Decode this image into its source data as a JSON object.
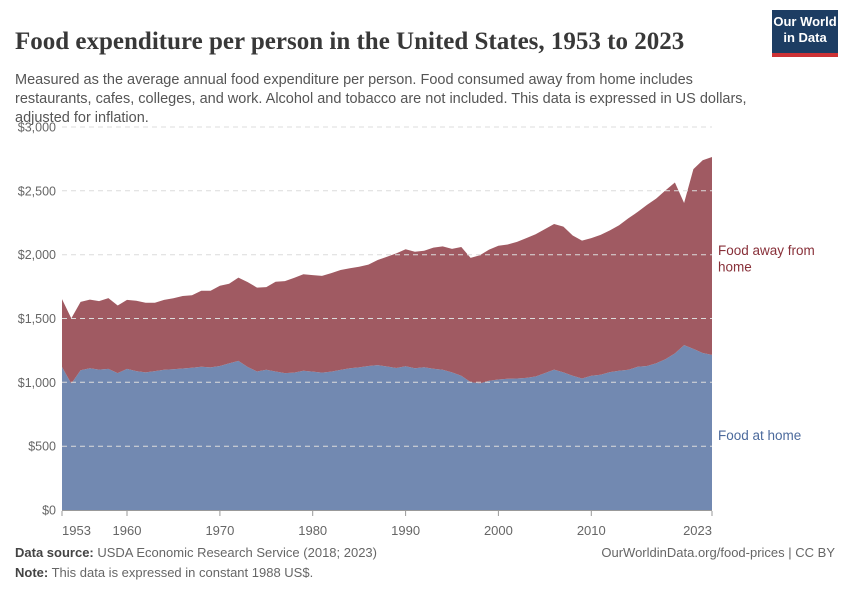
{
  "header": {
    "title": "Food expenditure per person in the United States, 1953 to 2023",
    "subtitle": "Measured as the average annual food expenditure per person. Food consumed away from home includes restaurants, cafes, colleges, and work. Alcohol and tobacco are not included. This data is expressed in US dollars, adjusted for inflation.",
    "logo": {
      "line1": "Our World",
      "line2": "in Data",
      "bg_color": "#1d3d63",
      "accent_color": "#cd3235",
      "text_color": "#ffffff"
    }
  },
  "footer": {
    "source_label": "Data source:",
    "source_text": " USDA Economic Research Service (2018; 2023)",
    "note_label": "Note:",
    "note_text": " This data is expressed in constant 1988 US$.",
    "credit": "OurWorldinData.org/food-prices | CC BY"
  },
  "chart_data": {
    "type": "area",
    "stacked": true,
    "title": "Food expenditure per person in the United States, 1953 to 2023",
    "xlabel": "",
    "ylabel": "",
    "ylim": [
      0,
      3000
    ],
    "grid": "horizontal-dashed",
    "legend_position": "right-of-plot",
    "y_tick_prefix": "$",
    "y_ticks": [
      0,
      500,
      1000,
      1500,
      2000,
      2500,
      3000
    ],
    "x_ticks": [
      1953,
      1960,
      1970,
      1980,
      1990,
      2000,
      2010,
      2023
    ],
    "x": [
      1953,
      1954,
      1955,
      1956,
      1957,
      1958,
      1959,
      1960,
      1961,
      1962,
      1963,
      1964,
      1965,
      1966,
      1967,
      1968,
      1969,
      1970,
      1971,
      1972,
      1973,
      1974,
      1975,
      1976,
      1977,
      1978,
      1979,
      1980,
      1981,
      1982,
      1983,
      1984,
      1985,
      1986,
      1987,
      1988,
      1989,
      1990,
      1991,
      1992,
      1993,
      1994,
      1995,
      1996,
      1997,
      1998,
      1999,
      2000,
      2001,
      2002,
      2003,
      2004,
      2005,
      2006,
      2007,
      2008,
      2009,
      2010,
      2011,
      2012,
      2013,
      2014,
      2015,
      2016,
      2017,
      2018,
      2019,
      2020,
      2021,
      2022,
      2023
    ],
    "series": [
      {
        "name": "Food at home",
        "color": "#4C6A9C",
        "fill": "#7289B1",
        "values": [
          1120,
          990,
          1095,
          1110,
          1100,
          1105,
          1072,
          1105,
          1088,
          1078,
          1088,
          1098,
          1102,
          1108,
          1115,
          1122,
          1117,
          1128,
          1148,
          1168,
          1120,
          1085,
          1098,
          1085,
          1072,
          1076,
          1090,
          1084,
          1076,
          1084,
          1097,
          1110,
          1117,
          1128,
          1135,
          1124,
          1112,
          1126,
          1110,
          1118,
          1106,
          1098,
          1078,
          1052,
          1002,
          992,
          1012,
          1022,
          1028,
          1030,
          1035,
          1046,
          1072,
          1100,
          1078,
          1052,
          1030,
          1052,
          1060,
          1080,
          1090,
          1098,
          1122,
          1128,
          1150,
          1182,
          1227,
          1292,
          1262,
          1230,
          1215
        ]
      },
      {
        "name": "Food away from home",
        "color": "#883039",
        "fill": "#A05A62",
        "values": [
          532,
          511,
          535,
          538,
          536,
          555,
          530,
          541,
          551,
          545,
          535,
          548,
          556,
          568,
          567,
          596,
          600,
          628,
          624,
          652,
          665,
          657,
          648,
          703,
          721,
          742,
          756,
          756,
          758,
          772,
          783,
          783,
          789,
          794,
          823,
          860,
          898,
          916,
          913,
          913,
          949,
          967,
          967,
          1008,
          973,
          1004,
          1028,
          1048,
          1052,
          1070,
          1095,
          1114,
          1128,
          1140,
          1142,
          1098,
          1080,
          1078,
          1095,
          1110,
          1140,
          1187,
          1213,
          1262,
          1290,
          1323,
          1338,
          1113,
          1408,
          1510,
          1550
        ]
      }
    ]
  }
}
